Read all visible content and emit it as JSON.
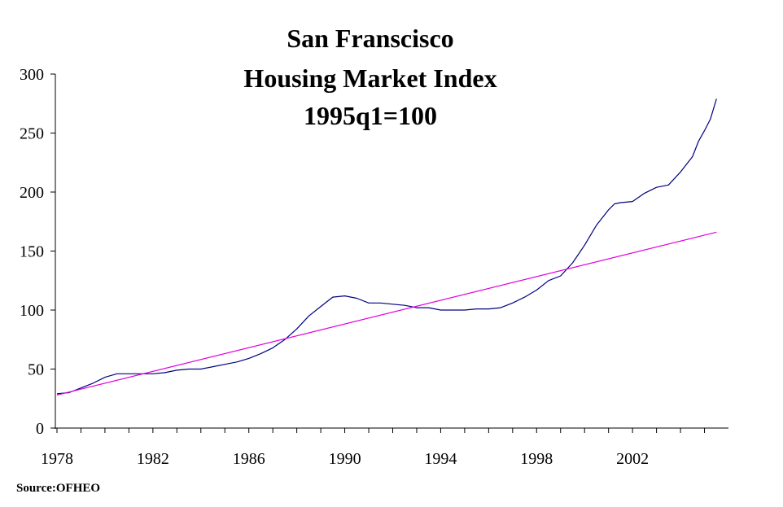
{
  "chart_data": {
    "type": "line",
    "title": [
      "San Franscisco",
      "Housing Market Index",
      "1995q1=100"
    ],
    "source": "Source:OFHEO",
    "xlim": [
      1978,
      2006
    ],
    "ylim": [
      0,
      300
    ],
    "x_ticks": [
      1978,
      1982,
      1986,
      1990,
      1994,
      1998,
      2002
    ],
    "y_ticks": [
      0,
      50,
      100,
      150,
      200,
      250,
      300
    ],
    "grid": false,
    "series": [
      {
        "color": "#000080",
        "x": [
          1978.0,
          1978.5,
          1979.0,
          1979.5,
          1980.0,
          1980.5,
          1981.0,
          1981.5,
          1982.0,
          1982.5,
          1983.0,
          1983.5,
          1984.0,
          1984.5,
          1985.0,
          1985.5,
          1986.0,
          1986.5,
          1987.0,
          1987.5,
          1988.0,
          1988.5,
          1989.0,
          1989.5,
          1990.0,
          1990.5,
          1991.0,
          1991.5,
          1992.0,
          1992.5,
          1993.0,
          1993.5,
          1994.0,
          1994.5,
          1995.0,
          1995.5,
          1996.0,
          1996.5,
          1997.0,
          1997.5,
          1998.0,
          1998.5,
          1999.0,
          1999.5,
          2000.0,
          2000.5,
          2001.0,
          2001.25,
          2001.5,
          2002.0,
          2002.5,
          2003.0,
          2003.5,
          2004.0,
          2004.5,
          2004.75,
          2005.0,
          2005.25,
          2005.5
        ],
        "values": [
          29,
          30,
          34,
          38,
          43,
          46,
          46,
          46,
          46,
          47,
          49,
          50,
          50,
          52,
          54,
          56,
          59,
          63,
          68,
          75,
          84,
          95,
          103,
          111,
          112,
          110,
          106,
          106,
          105,
          104,
          102,
          102,
          100,
          100,
          100,
          101,
          101,
          102,
          106,
          111,
          117,
          125,
          129,
          140,
          155,
          172,
          185,
          190,
          191,
          192,
          199,
          204,
          206,
          217,
          230,
          243,
          252,
          262,
          279
        ]
      },
      {
        "color": "#e000e0",
        "x": [
          1978.0,
          2005.5
        ],
        "values": [
          28,
          166
        ]
      }
    ]
  }
}
